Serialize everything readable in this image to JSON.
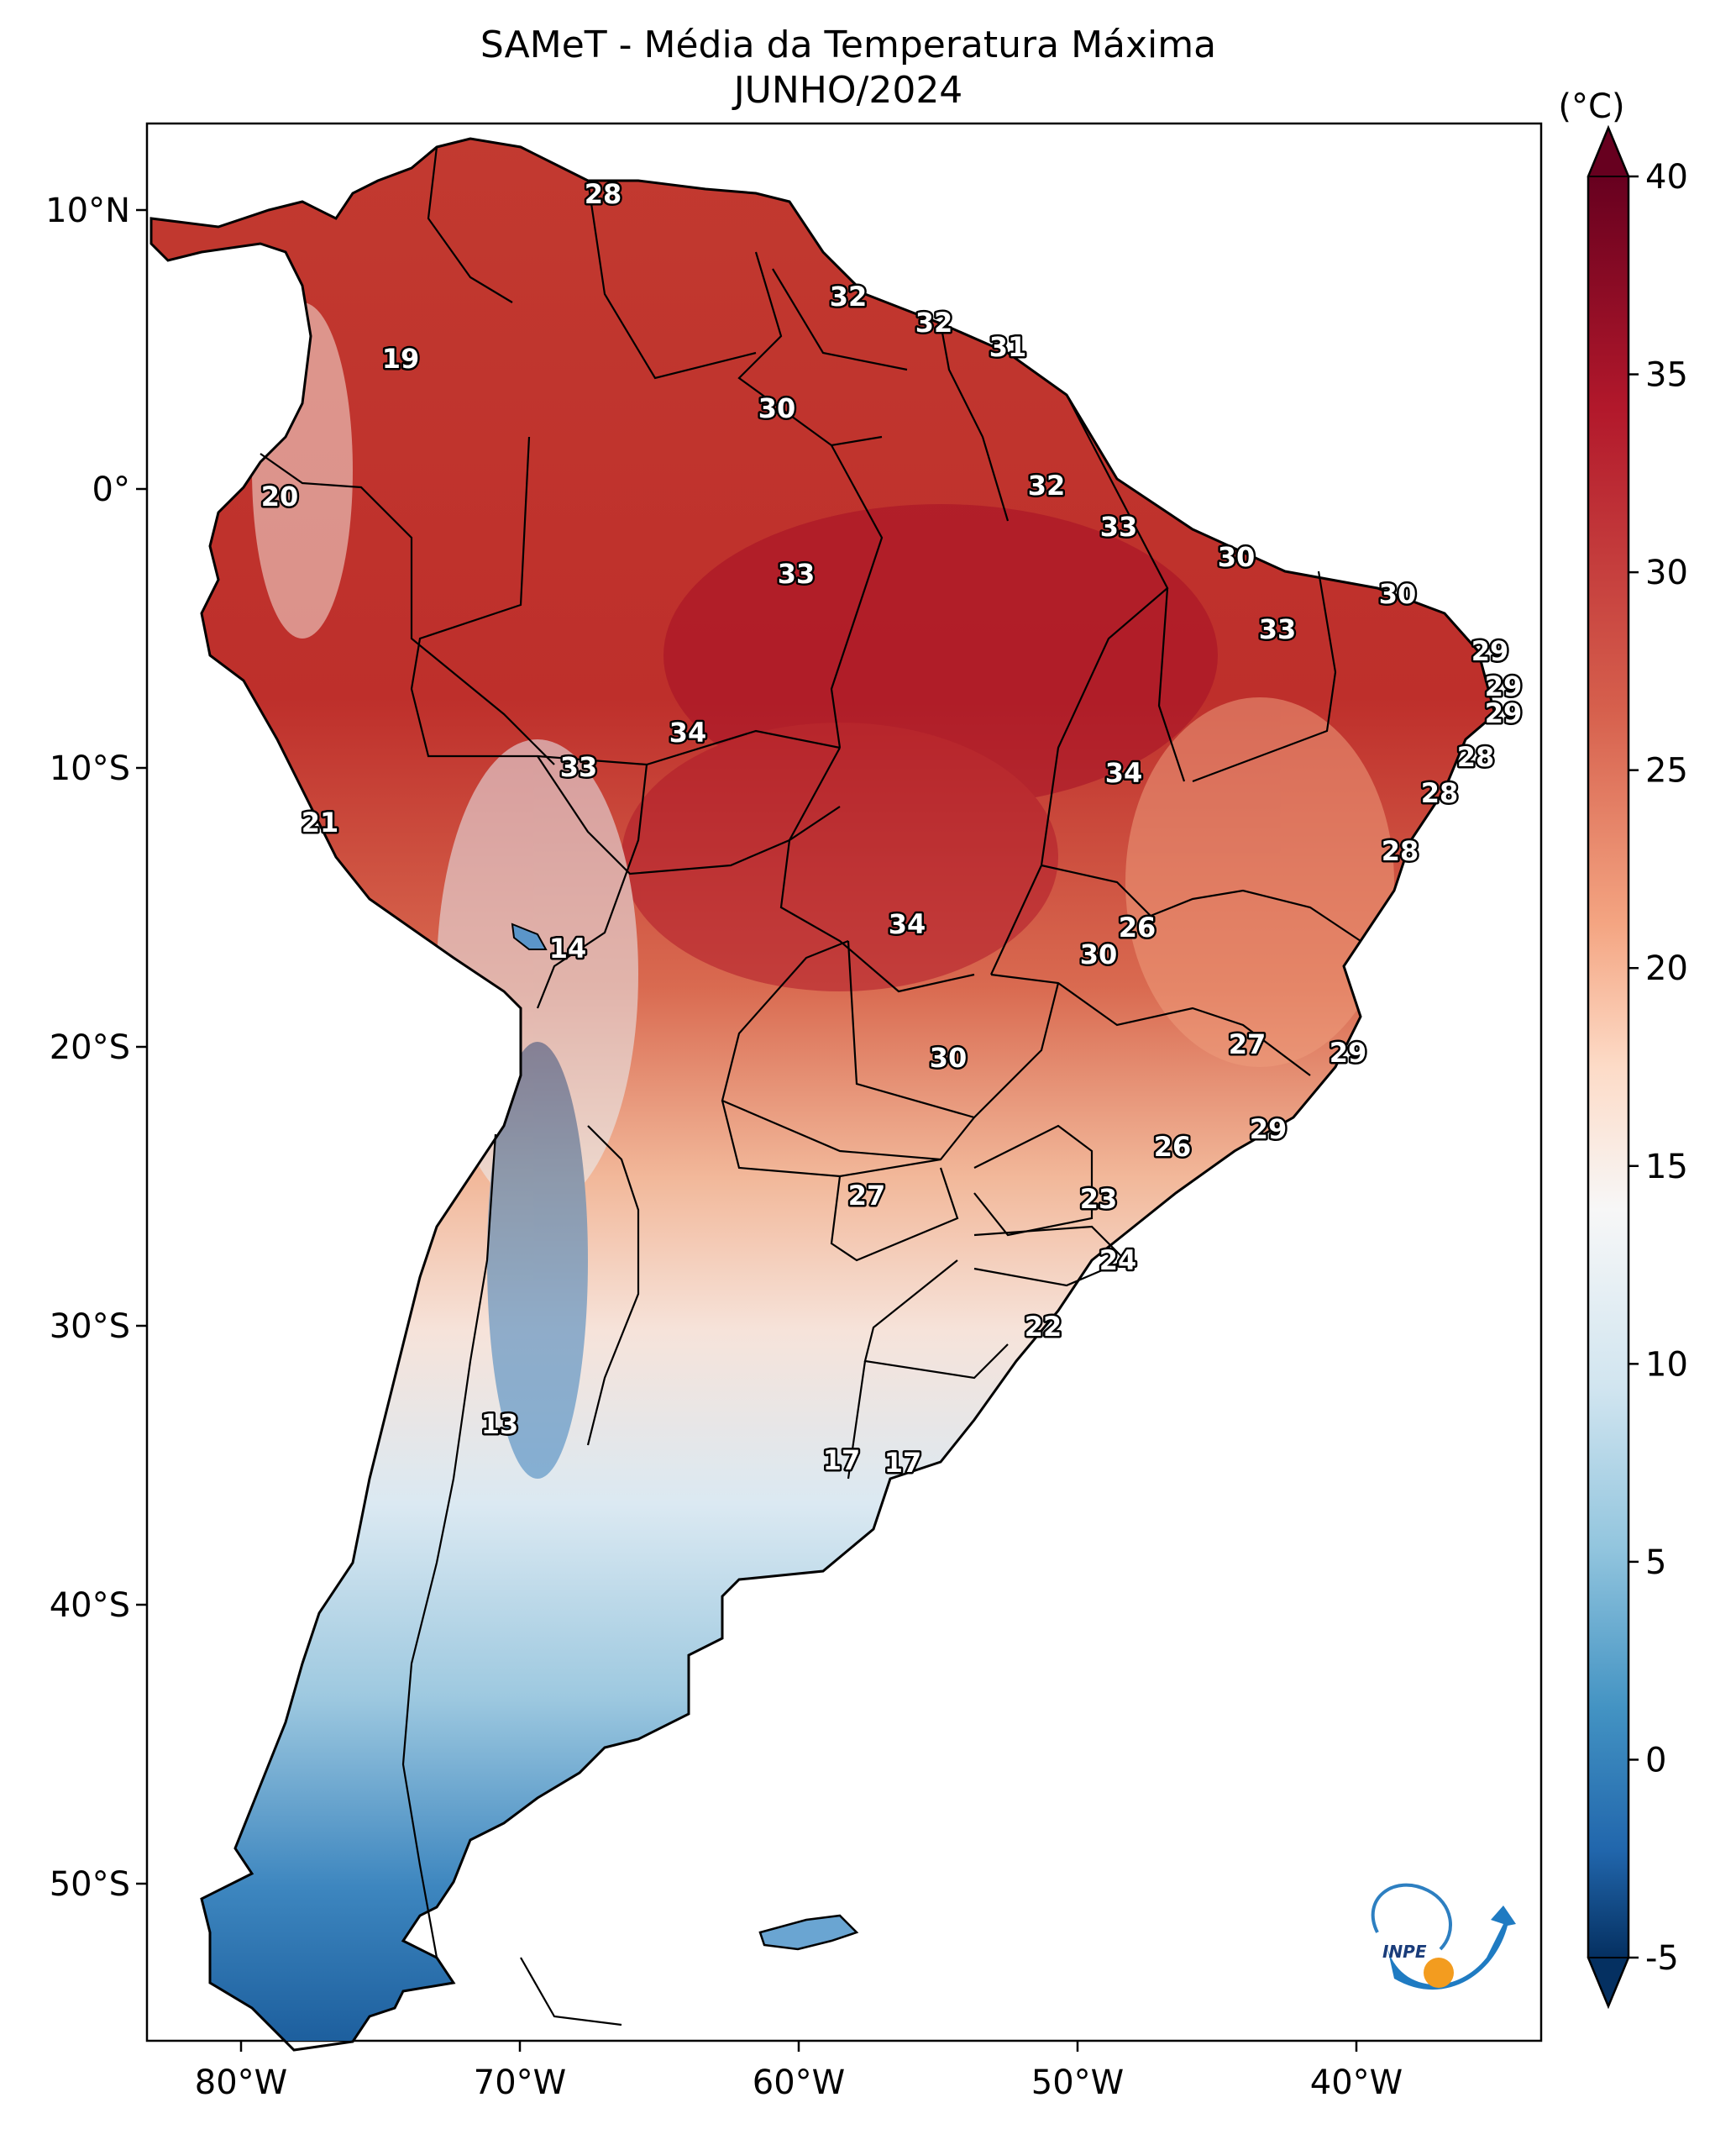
{
  "title": "SAMeT - Média da Temperatura Máxima",
  "subtitle": "JUNHO/2024",
  "colorbar": {
    "unit": "(°C)",
    "ticks": [
      "40",
      "35",
      "30",
      "25",
      "20",
      "15",
      "10",
      "5",
      "0",
      "-5"
    ],
    "range": [
      -5,
      40
    ],
    "colors": {
      "max": "#67001f",
      "warm": "#d6604d",
      "neutral": "#f7f7f7",
      "cool": "#92c5de",
      "min": "#053061"
    }
  },
  "axes": {
    "lon_ticks": [
      "80°W",
      "70°W",
      "60°W",
      "50°W",
      "40°W"
    ],
    "lat_ticks": [
      "10°N",
      "0°",
      "10°S",
      "20°S",
      "30°S",
      "40°S",
      "50°S"
    ]
  },
  "map_labels": [
    "28",
    "32",
    "32",
    "31",
    "19",
    "30",
    "20",
    "32",
    "33",
    "33",
    "30",
    "30",
    "33",
    "29",
    "29",
    "29",
    "34",
    "28",
    "33",
    "34",
    "28",
    "21",
    "28",
    "34",
    "26",
    "14",
    "30",
    "27",
    "29",
    "30",
    "29",
    "26",
    "27",
    "23",
    "24",
    "22",
    "13",
    "17",
    "17"
  ],
  "logo": {
    "text": "INPE"
  }
}
